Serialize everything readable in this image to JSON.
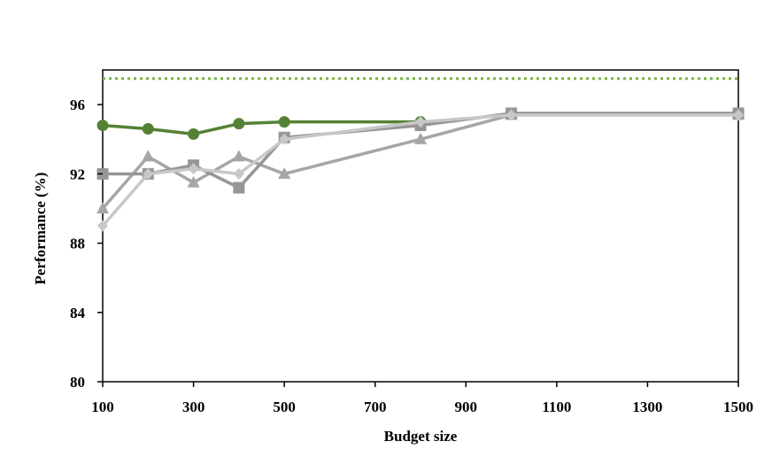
{
  "chart_data": {
    "type": "line",
    "title": "",
    "xlabel": "Budget size",
    "ylabel": "Performance (%)",
    "xlim": [
      100,
      1500
    ],
    "ylim": [
      80,
      98
    ],
    "xticks": [
      100,
      300,
      500,
      700,
      900,
      1100,
      1300,
      1500
    ],
    "yticks": [
      80,
      84,
      88,
      92,
      96
    ],
    "grid": false,
    "legend": "none",
    "reference_line": {
      "y": 97.5,
      "style": "dotted",
      "color": "#7CB342"
    },
    "series": [
      {
        "color": "#548235",
        "marker": "circle",
        "x": [
          100,
          200,
          300,
          400,
          500,
          800
        ],
        "y": [
          94.8,
          94.6,
          94.3,
          94.9,
          95.0,
          95.0
        ]
      },
      {
        "color": "#A6A6A6",
        "marker": "triangle",
        "x": [
          100,
          200,
          300,
          400,
          500,
          800,
          1000,
          1500
        ],
        "y": [
          90.0,
          93.0,
          91.5,
          93.0,
          92.0,
          94.0,
          95.4,
          95.4
        ]
      },
      {
        "color": "#969696",
        "marker": "square",
        "x": [
          100,
          200,
          300,
          400,
          500,
          800,
          1000,
          1500
        ],
        "y": [
          92.0,
          92.0,
          92.5,
          91.2,
          94.1,
          94.8,
          95.5,
          95.5
        ]
      },
      {
        "color": "#C8C8C8",
        "marker": "diamond",
        "x": [
          100,
          200,
          300,
          400,
          500,
          800,
          1000,
          1500
        ],
        "y": [
          89.0,
          92.0,
          92.3,
          92.0,
          94.0,
          95.0,
          95.4,
          95.4
        ]
      }
    ]
  }
}
